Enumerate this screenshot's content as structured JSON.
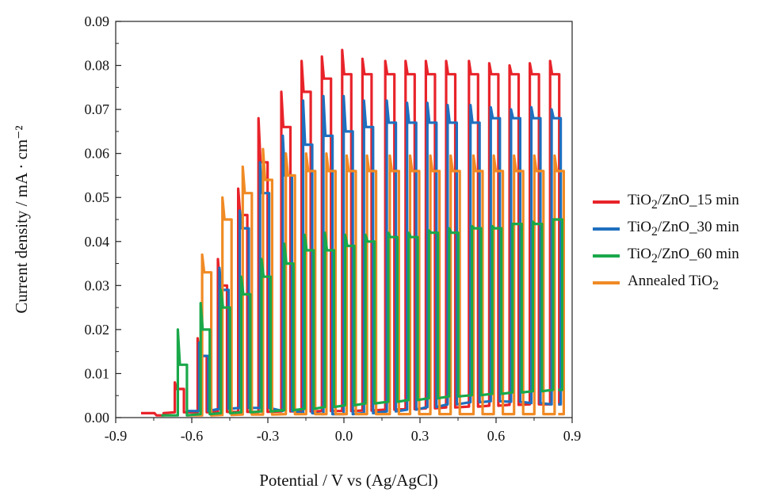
{
  "chart_data": {
    "type": "line",
    "title": "",
    "xlabel": "Potential / V vs (Ag/AgCl)",
    "ylabel": "Current density / mA · cm⁻²",
    "xlim": [
      -0.9,
      0.9
    ],
    "ylim": [
      0,
      0.09
    ],
    "xticks": [
      "-0.9",
      "-0.6",
      "-0.3",
      "0.0",
      "0.3",
      "0.6",
      "0.9"
    ],
    "yticks": [
      "0.00",
      "0.01",
      "0.02",
      "0.03",
      "0.04",
      "0.05",
      "0.06",
      "0.07",
      "0.08",
      "0.09"
    ],
    "grid": false,
    "legend_position": "right",
    "pulse_potentials": [
      -0.72,
      -0.64,
      -0.55,
      -0.47,
      -0.39,
      -0.31,
      -0.22,
      -0.14,
      -0.06,
      0.02,
      0.1,
      0.19,
      0.27,
      0.35,
      0.43,
      0.52,
      0.6,
      0.68,
      0.76,
      0.84
    ],
    "series": [
      {
        "name": "TiO₂/ZnO_15 min",
        "color": "#e8232a",
        "dark_start": -0.8,
        "dark_current": [
          0.001,
          0.0012,
          0.0012,
          0.0013,
          0.0013,
          0.0013,
          0.0014,
          0.0014,
          0.0015,
          0.0015,
          0.0016,
          0.0018,
          0.0019,
          0.0021,
          0.0023,
          0.0025,
          0.0027,
          0.0029,
          0.003,
          0.003
        ],
        "spike": [
          0.001,
          0.008,
          0.018,
          0.036,
          0.052,
          0.068,
          0.074,
          0.081,
          0.082,
          0.0835,
          0.0815,
          0.081,
          0.081,
          0.081,
          0.081,
          0.081,
          0.0805,
          0.08,
          0.0805,
          0.081
        ],
        "photo_current": [
          0.0005,
          0.0065,
          0.014,
          0.03,
          0.046,
          0.058,
          0.066,
          0.074,
          0.077,
          0.078,
          0.078,
          0.078,
          0.078,
          0.078,
          0.078,
          0.078,
          0.078,
          0.078,
          0.078,
          0.078
        ]
      },
      {
        "name": "TiO₂/ZnO_30 min",
        "color": "#1f6fbf",
        "dark_start": -0.62,
        "dark_current": [
          0.0005,
          0.001,
          0.0015,
          0.002,
          0.0022,
          0.0022,
          0.0015,
          0.001,
          0.0008,
          0.0008,
          0.001,
          0.0014,
          0.0018,
          0.0024,
          0.003,
          0.0035,
          0.0037,
          0.0036,
          0.0033,
          0.003
        ],
        "spike": [
          0.001,
          0.007,
          0.017,
          0.034,
          0.047,
          0.058,
          0.064,
          0.072,
          0.073,
          0.073,
          0.072,
          0.072,
          0.0715,
          0.0715,
          0.071,
          0.071,
          0.0705,
          0.07,
          0.0705,
          0.07
        ],
        "photo_current": [
          0.0005,
          0.006,
          0.014,
          0.029,
          0.043,
          0.051,
          0.055,
          0.062,
          0.064,
          0.065,
          0.066,
          0.067,
          0.067,
          0.067,
          0.067,
          0.067,
          0.068,
          0.068,
          0.068,
          0.068
        ]
      },
      {
        "name": "TiO₂/ZnO_60 min",
        "color": "#1aa84a",
        "dark_start": -0.72,
        "dark_current": [
          0.0003,
          0.0005,
          0.0008,
          0.001,
          0.0012,
          0.0014,
          0.0017,
          0.002,
          0.0024,
          0.0028,
          0.0032,
          0.0036,
          0.004,
          0.0044,
          0.0048,
          0.0051,
          0.0054,
          0.0057,
          0.006,
          0.0063
        ],
        "spike": [
          0.0085,
          0.02,
          0.026,
          0.029,
          0.032,
          0.036,
          0.0395,
          0.0415,
          0.042,
          0.0415,
          0.0415,
          0.042,
          0.042,
          0.0425,
          0.043,
          0.0435,
          0.0435,
          0.044,
          0.0445,
          0.045
        ],
        "photo_current": [
          0.002,
          0.012,
          0.02,
          0.025,
          0.028,
          0.032,
          0.035,
          0.038,
          0.038,
          0.039,
          0.04,
          0.041,
          0.041,
          0.042,
          0.042,
          0.043,
          0.043,
          0.044,
          0.044,
          0.045
        ]
      },
      {
        "name": "Annealed TiO₂",
        "color": "#f08a24",
        "dark_start": -0.62,
        "dark_current": [
          0.0003,
          0.0004,
          0.0005,
          0.0006,
          0.0007,
          0.0007,
          0.0008,
          0.0008,
          0.0008,
          0.0008,
          0.0008,
          0.0008,
          0.0008,
          0.0008,
          0.0008,
          0.0008,
          0.0008,
          0.0008,
          0.0008,
          0.0008
        ],
        "spike": [
          0.001,
          0.024,
          0.037,
          0.05,
          0.057,
          0.061,
          0.06,
          0.06,
          0.06,
          0.0595,
          0.0595,
          0.0595,
          0.0595,
          0.0595,
          0.0595,
          0.0595,
          0.0595,
          0.0595,
          0.0595,
          0.0595
        ],
        "photo_current": [
          0.0005,
          0.019,
          0.033,
          0.045,
          0.051,
          0.054,
          0.055,
          0.056,
          0.056,
          0.056,
          0.056,
          0.056,
          0.056,
          0.056,
          0.056,
          0.056,
          0.056,
          0.056,
          0.056,
          0.056
        ]
      }
    ]
  },
  "legend": {
    "items": [
      {
        "label_main": "TiO",
        "label_sub": "2",
        "label_rest": "/ZnO_15 min",
        "color": "#e8232a"
      },
      {
        "label_main": "TiO",
        "label_sub": "2",
        "label_rest": "/ZnO_30 min",
        "color": "#1f6fbf"
      },
      {
        "label_main": "TiO",
        "label_sub": "2",
        "label_rest": "/ZnO_60 min",
        "color": "#1aa84a"
      },
      {
        "label_main": "Annealed TiO",
        "label_sub": "2",
        "label_rest": "",
        "color": "#f08a24"
      }
    ]
  }
}
